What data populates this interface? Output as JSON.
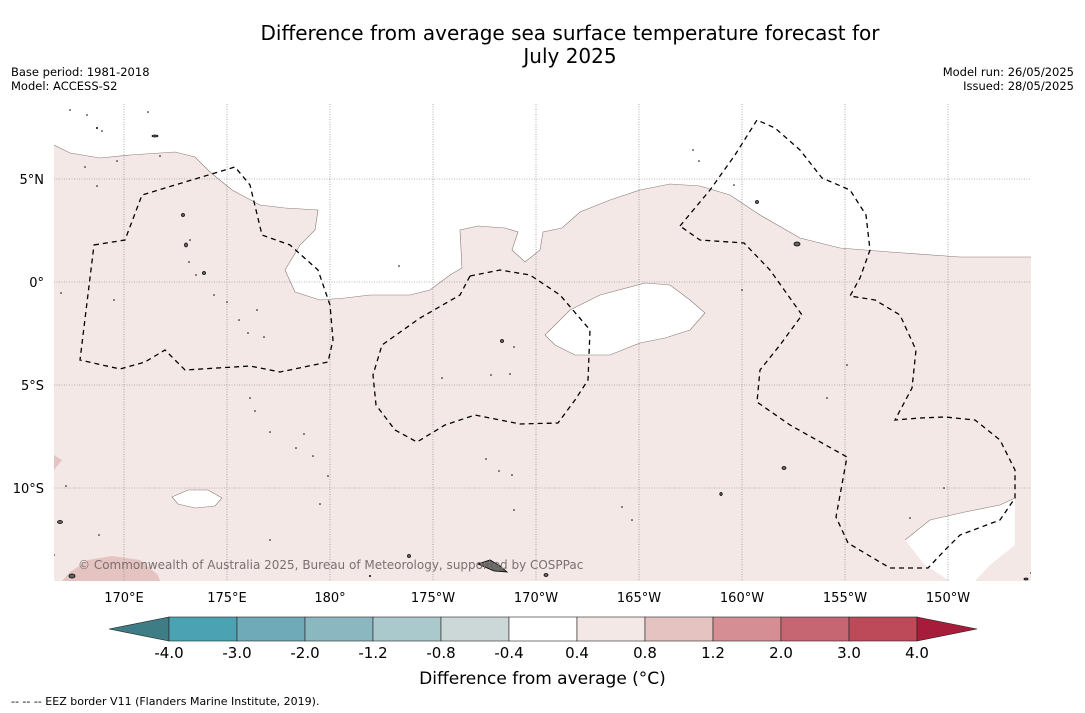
{
  "title": {
    "line1": "Difference from average sea surface temperature forecast for",
    "line2": "July 2025"
  },
  "meta_left": {
    "base_period": "Base period: 1981-2018",
    "model": "Model: ACCESS-S2"
  },
  "meta_right": {
    "model_run": "Model run: 26/05/2025",
    "issued": "Issued: 28/05/2025"
  },
  "map": {
    "lat_labels": [
      "5°N",
      "0°",
      "5°S",
      "10°S"
    ],
    "lon_labels": [
      "170°E",
      "175°E",
      "180°",
      "175°W",
      "170°W",
      "165°W",
      "160°W",
      "155°W",
      "150°W"
    ],
    "copyright": "© Commonwealth of Australia 2025, Bureau of Meteorology, supported by COSPPac",
    "colors": {
      "anomaly_0_4_0_8": "#f4e8e7",
      "anomaly_0_8_1_2": "#e5c3c0",
      "land": "#666666",
      "eez_border": "#000000"
    }
  },
  "colorbar": {
    "title": "Difference from average (°C)",
    "tick_labels": [
      "-4.0",
      "-3.0",
      "-2.0",
      "-1.2",
      "-0.8",
      "-0.4",
      "0.4",
      "0.8",
      "1.2",
      "2.0",
      "3.0",
      "4.0"
    ],
    "colors": [
      "#3e7d86",
      "#4ba2b2",
      "#6eaab8",
      "#8bb7c1",
      "#a9c9cd",
      "#ccd7d8",
      "#ffffff",
      "#f4e8e7",
      "#e5c3c0",
      "#d48e94",
      "#c56672",
      "#bd4a59",
      "#a71c3a"
    ]
  },
  "legend": {
    "eez": "-- -- -- EEZ border V11 (Flanders Marine Institute, 2019)."
  }
}
